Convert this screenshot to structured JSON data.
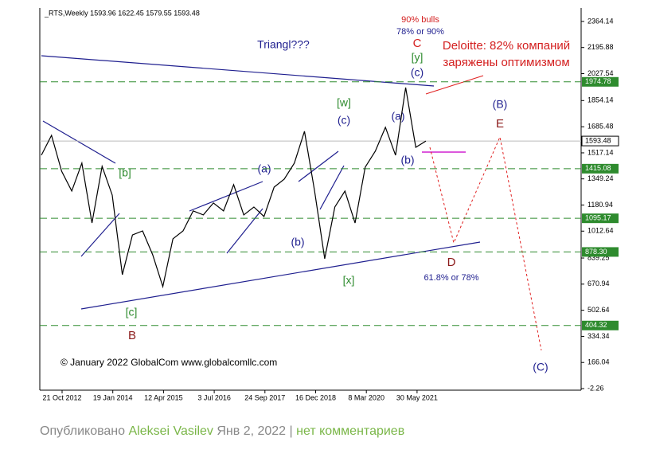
{
  "chart_data": {
    "type": "line",
    "header": "_RTS,Weekly  1593.96 1622.45 1579.55 1593.48",
    "values": [
      1502,
      1630,
      1399,
      1271,
      1451,
      1065,
      1430,
      1245,
      732,
      988,
      1014,
      860,
      655,
      963,
      1014,
      1143,
      1117,
      1194,
      1143,
      1312,
      1117,
      1168,
      1107,
      1296,
      1348,
      1451,
      1656,
      1271,
      835,
      1168,
      1271,
      1065,
      1425,
      1528,
      1682,
      1502,
      1938,
      1553,
      1593.48
    ],
    "color": "#000000",
    "ylim": [
      -12.5,
      2451
    ],
    "yticks": [
      2364.14,
      2195.88,
      2027.54,
      1854.14,
      1685.48,
      1517.14,
      1349.24,
      1180.94,
      1012.64,
      839.25,
      670.94,
      502.64,
      334.34,
      166.04,
      -2.26
    ],
    "xtick_labels": [
      "21 Oct 2012",
      "19 Jan 2014",
      "12 Apr 2015",
      "3 Jul 2016",
      "24 Sep 2017",
      "16 Dec 2018",
      "8 Mar 2020",
      "30 May 2021"
    ],
    "levels": [
      1974.78,
      1415.08,
      1095.17,
      {
        "value": 878.3,
        "label": "878.30"
      },
      404.32
    ],
    "level_color": "#2e8b2e",
    "current": 1593.48,
    "annotations": [
      "Triangl???",
      "90% bulls",
      "78% or 90%",
      "C",
      "[y]",
      "(c)",
      "Deloitte: 82% компаний",
      "заряжены оптимизмом",
      "[w]",
      "(c)",
      "(a)",
      "(b)",
      "(B)",
      "E",
      "[b]",
      "(a)",
      "(b)",
      "D",
      "61.8% or 78%",
      "[x]",
      "[c]",
      "B",
      "© January 2022 GlobalCom www.globalcomllc.com",
      "(C)"
    ]
  },
  "footer": {
    "prefix": "Опубликовано ",
    "author": "Aleksei Vasilev",
    "date": " Янв 2, 2022 | ",
    "comments": "нет комментариев"
  }
}
